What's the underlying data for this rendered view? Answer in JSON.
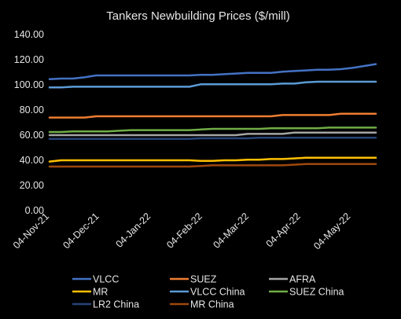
{
  "chart_data": {
    "type": "line",
    "title": "Tankers Newbuilding Prices ($/mill)",
    "xlabel": "",
    "ylabel": "",
    "ylim": [
      0,
      140
    ],
    "yticks": [
      "0.00",
      "20.00",
      "40.00",
      "60.00",
      "80.00",
      "100.00",
      "120.00",
      "140.00"
    ],
    "x_tick_labels": [
      "04-Nov-21",
      "04-Dec-21",
      "04-Jan-22",
      "04-Feb-22",
      "04-Mar-22",
      "04-Apr-22",
      "04-May-22"
    ],
    "x": [
      "2021-11-04",
      "2021-11-11",
      "2021-11-18",
      "2021-11-25",
      "2021-12-02",
      "2021-12-09",
      "2021-12-16",
      "2021-12-23",
      "2021-12-30",
      "2022-01-06",
      "2022-01-13",
      "2022-01-20",
      "2022-01-27",
      "2022-02-03",
      "2022-02-10",
      "2022-02-17",
      "2022-02-24",
      "2022-03-03",
      "2022-03-10",
      "2022-03-17",
      "2022-03-24",
      "2022-03-31",
      "2022-04-07",
      "2022-04-14",
      "2022-04-21",
      "2022-04-28",
      "2022-05-05",
      "2022-05-12",
      "2022-05-19"
    ],
    "grid": false,
    "legend": "bottom",
    "series": [
      {
        "name": "VLCC",
        "color": "#4472c4",
        "values": [
          104.5,
          105,
          105,
          106,
          107.5,
          107.5,
          107.5,
          107.5,
          107.5,
          107.5,
          107.5,
          107.5,
          107.5,
          108,
          108,
          108.5,
          109,
          109.5,
          109.5,
          109.5,
          110.5,
          111,
          111.5,
          112,
          112,
          112.5,
          113.5,
          115,
          116.5
        ]
      },
      {
        "name": "SUEZ",
        "color": "#ed7d31",
        "values": [
          74,
          74,
          74,
          74,
          75,
          75,
          75,
          75,
          75,
          75,
          75,
          75,
          75,
          75,
          75,
          75,
          75,
          75,
          75,
          75,
          76,
          76,
          76,
          76,
          76,
          77,
          77,
          77,
          77
        ]
      },
      {
        "name": "AFRA",
        "color": "#a5a5a5",
        "values": [
          60,
          60,
          60,
          60,
          60,
          60,
          60,
          60,
          60,
          60,
          60,
          60,
          60,
          60,
          60,
          60,
          60,
          61,
          61,
          61,
          61,
          62,
          62,
          62,
          62,
          62,
          62,
          62,
          62
        ]
      },
      {
        "name": "MR",
        "color": "#ffc000",
        "values": [
          39,
          40,
          40,
          40,
          40,
          40,
          40,
          40,
          40,
          40,
          40,
          40,
          40,
          39.5,
          39.5,
          40,
          40,
          40.5,
          40.5,
          41,
          41,
          41.5,
          42,
          42,
          42,
          42,
          42,
          42,
          42
        ]
      },
      {
        "name": "VLCC China",
        "color": "#5b9bd5",
        "values": [
          98,
          98,
          98.5,
          98.5,
          98.5,
          98.5,
          98.5,
          98.5,
          98.5,
          98.5,
          98.5,
          98.5,
          98.5,
          100.5,
          100.5,
          100.5,
          100.5,
          100.5,
          100.5,
          100.5,
          101,
          101,
          102,
          102.5,
          102.5,
          102.5,
          102.5,
          102.5,
          102.5
        ]
      },
      {
        "name": "SUEZ China",
        "color": "#70ad47",
        "values": [
          62.5,
          62.5,
          63,
          63,
          63,
          63,
          63.5,
          64,
          64,
          64,
          64,
          64,
          64,
          64.5,
          65,
          65,
          65,
          65,
          65,
          65.5,
          65.5,
          65.5,
          65.5,
          65.5,
          66,
          66,
          66,
          66,
          66
        ]
      },
      {
        "name": "LR2 China",
        "color": "#264478",
        "values": [
          57,
          57,
          57,
          57,
          57,
          57,
          57,
          57,
          57,
          57,
          57,
          57,
          57,
          57.5,
          57.5,
          57.5,
          57.5,
          57.5,
          58,
          58,
          58,
          58,
          58,
          58,
          58,
          58,
          58,
          58,
          58
        ]
      },
      {
        "name": "MR China",
        "color": "#9e480e",
        "values": [
          35,
          35,
          35,
          35,
          35,
          35,
          35,
          35,
          35,
          35,
          35,
          35,
          35,
          35.5,
          36,
          36,
          36,
          36,
          36,
          36,
          36,
          36.5,
          37,
          37,
          37,
          37,
          37,
          37,
          37
        ]
      }
    ]
  }
}
